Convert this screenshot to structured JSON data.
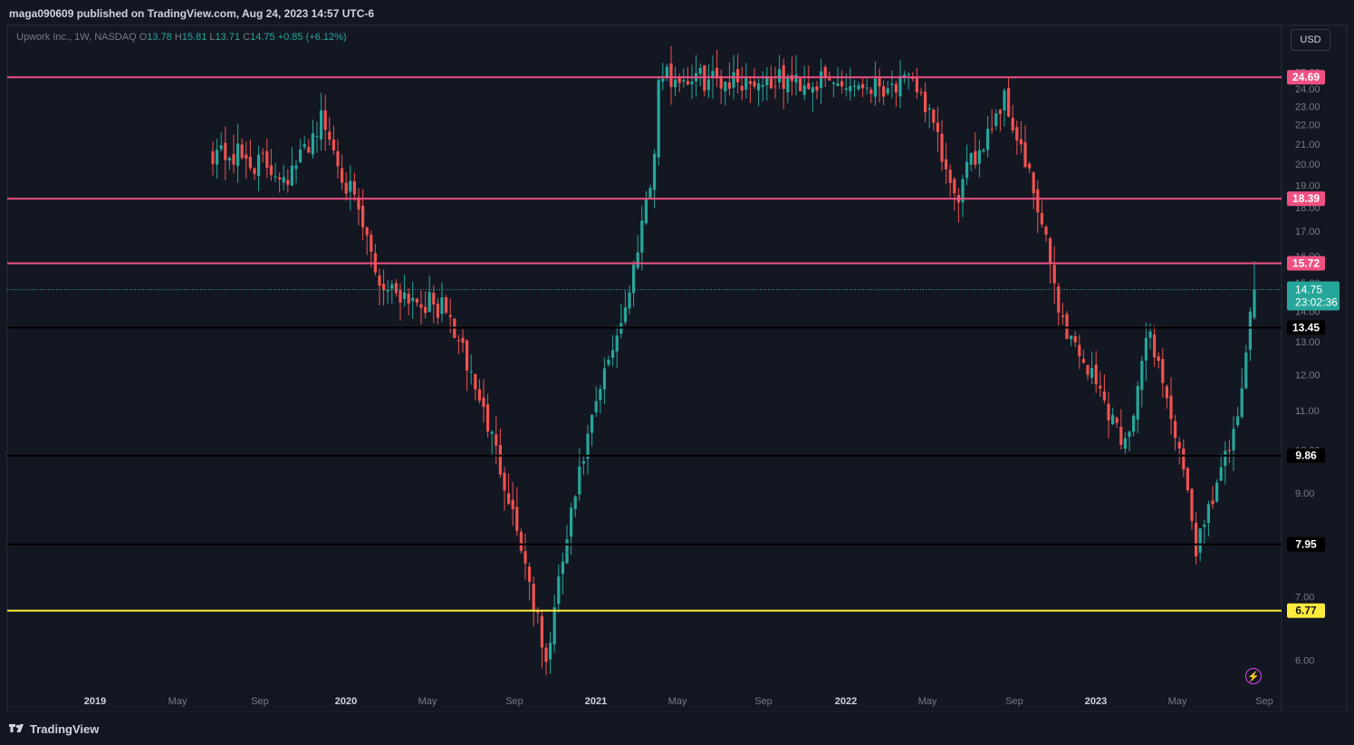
{
  "header": {
    "publisher_text": "maga090609 published on TradingView.com, Aug 24, 2023 14:57 UTC-6"
  },
  "legend": {
    "symbol": "Upwork Inc., 1W, NASDAQ",
    "o_label": "O",
    "o_value": "13.78",
    "h_label": "H",
    "h_value": "15.81",
    "l_label": "L",
    "l_value": "13.71",
    "c_label": "C",
    "c_value": "14.75",
    "change": "+0.85 (+6.12%)"
  },
  "currency_button": "USD",
  "footer": {
    "brand": "TradingView"
  },
  "colors": {
    "background": "#131722",
    "up": "#26a69a",
    "down": "#ef5350",
    "resistance": "#f05082",
    "support": "#000000",
    "low_level": "#ffeb3b",
    "text": "#d1d4dc",
    "muted": "#787b86",
    "grid": "#1e222d"
  },
  "chart_data": {
    "type": "candlestick",
    "symbol": "Upwork Inc., 1W, NASDAQ",
    "y_scale": "log",
    "ylim": [
      5.6,
      28
    ],
    "y_ticks": [
      "6.00",
      "7.00",
      "8.00",
      "9.00",
      "10.00",
      "11.00",
      "12.00",
      "13.00",
      "14.00",
      "15.00",
      "16.00",
      "17.00",
      "18.00",
      "19.00",
      "20.00",
      "21.00",
      "22.00",
      "23.00",
      "24.00",
      "25.00"
    ],
    "x_ticks": [
      "2019",
      "May",
      "Sep",
      "2020",
      "May",
      "Sep",
      "2021",
      "May",
      "Sep",
      "2022",
      "May",
      "Sep",
      "2023",
      "May",
      "Sep"
    ],
    "horizontal_levels": [
      {
        "value": 24.69,
        "label": "24.69",
        "kind": "resistance"
      },
      {
        "value": 18.39,
        "label": "18.39",
        "kind": "resistance"
      },
      {
        "value": 15.72,
        "label": "15.72",
        "kind": "resistance"
      },
      {
        "value": 13.45,
        "label": "13.45",
        "kind": "support"
      },
      {
        "value": 9.86,
        "label": "9.86",
        "kind": "support"
      },
      {
        "value": 7.95,
        "label": "7.95",
        "kind": "support"
      },
      {
        "value": 6.77,
        "label": "6.77",
        "kind": "low"
      }
    ],
    "last_price": {
      "value": 14.75,
      "label": "14.75",
      "countdown": "23:02:36"
    },
    "segments": [
      {
        "weeks": 20,
        "from": 20.8,
        "to": 19.5,
        "vol": 0.07
      },
      {
        "weeks": 7,
        "from": 19.5,
        "to": 22.3,
        "vol": 0.06
      },
      {
        "weeks": 14,
        "from": 22.3,
        "to": 15.0,
        "vol": 0.06
      },
      {
        "weeks": 16,
        "from": 15.0,
        "to": 14.0,
        "vol": 0.06
      },
      {
        "weeks": 24,
        "from": 14.0,
        "to": 5.9,
        "vol": 0.05
      },
      {
        "weeks": 20,
        "from": 5.9,
        "to": 14.6,
        "vol": 0.05
      },
      {
        "weeks": 6,
        "from": 14.6,
        "to": 20.3,
        "vol": 0.05
      },
      {
        "weeks": 63,
        "from": 24.7,
        "to": 24.2,
        "vol": 0.06
      },
      {
        "weeks": 9,
        "from": 24.5,
        "to": 18.2,
        "vol": 0.06
      },
      {
        "weeks": 12,
        "from": 18.2,
        "to": 23.5,
        "vol": 0.06
      },
      {
        "weeks": 14,
        "from": 23.5,
        "to": 13.6,
        "vol": 0.06
      },
      {
        "weeks": 15,
        "from": 13.6,
        "to": 10.1,
        "vol": 0.06
      },
      {
        "weeks": 6,
        "from": 10.1,
        "to": 13.3,
        "vol": 0.06
      },
      {
        "weeks": 11,
        "from": 13.3,
        "to": 7.9,
        "vol": 0.05
      },
      {
        "weeks": 10,
        "from": 7.9,
        "to": 10.6,
        "vol": 0.05
      },
      {
        "weeks": 4,
        "from": 10.6,
        "to": 14.75,
        "vol": 0.05
      }
    ]
  }
}
